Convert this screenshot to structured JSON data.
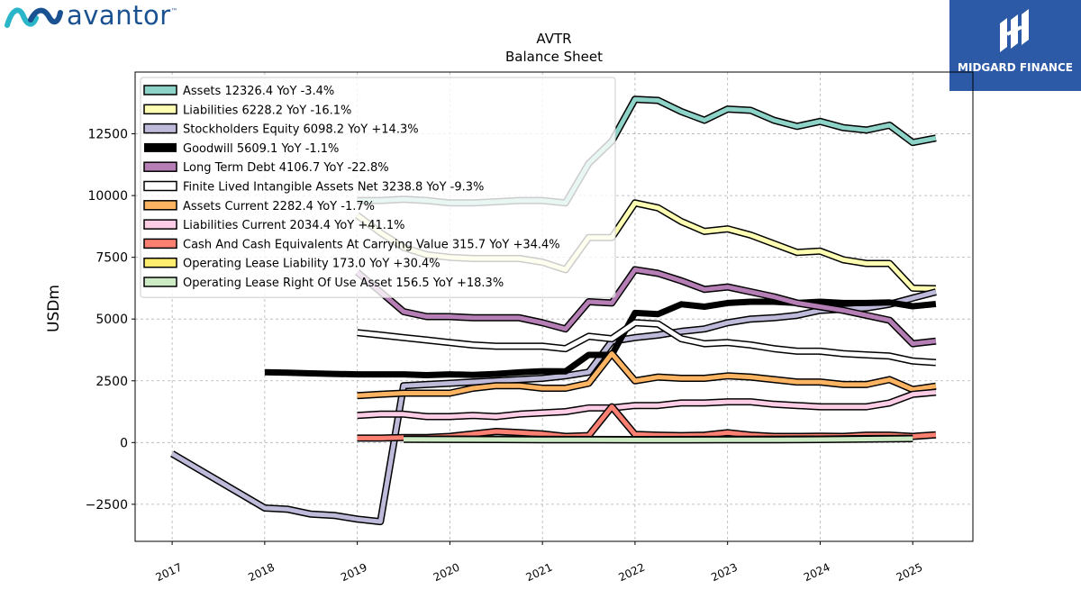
{
  "branding": {
    "left_logo": "avantor",
    "left_logo_tm": "™",
    "right_logo": "MIDGARD FINANCE"
  },
  "chart_data": {
    "type": "line",
    "title": "AVTR",
    "subtitle": "Balance  Sheet",
    "ylabel": "USDm",
    "xlabel": "",
    "ylim": [
      -4000,
      15000
    ],
    "xlim": [
      2016.6,
      2025.65
    ],
    "yticks": [
      -2500,
      0,
      2500,
      5000,
      7500,
      10000,
      12500
    ],
    "ytick_labels": [
      "−2500",
      "0",
      "2500",
      "5000",
      "7500",
      "10000",
      "12500"
    ],
    "xticks": [
      2017,
      2018,
      2019,
      2020,
      2021,
      2022,
      2023,
      2024,
      2025
    ],
    "xtick_labels": [
      "2017",
      "2018",
      "2019",
      "2020",
      "2021",
      "2022",
      "2023",
      "2024",
      "2025"
    ],
    "grid": true,
    "legend_position": "top-left",
    "series": [
      {
        "name": "Assets",
        "legend": "Assets  12326.4 YoY -3.4%",
        "color": "#8dd3c7",
        "width": 5,
        "x": [
          2019.0,
          2019.25,
          2019.5,
          2019.75,
          2020.0,
          2020.25,
          2020.5,
          2020.75,
          2021.0,
          2021.25,
          2021.5,
          2021.75,
          2022.0,
          2022.25,
          2022.5,
          2022.75,
          2023.0,
          2023.25,
          2023.5,
          2023.75,
          2024.0,
          2024.25,
          2024.5,
          2024.75,
          2025.0,
          2025.25
        ],
        "y": [
          9800,
          9800,
          9850,
          9800,
          9700,
          9700,
          9750,
          9800,
          9800,
          9700,
          11300,
          12200,
          13900,
          13850,
          13400,
          13050,
          13500,
          13450,
          13050,
          12800,
          13000,
          12750,
          12650,
          12850,
          12150,
          12326.4
        ]
      },
      {
        "name": "Liabilities",
        "legend": "Liabilities  6228.2 YoY -16.1%",
        "color": "#ffffb3",
        "width": 5,
        "x": [
          2019.0,
          2019.25,
          2019.5,
          2019.75,
          2020.0,
          2020.25,
          2020.5,
          2020.75,
          2021.0,
          2021.25,
          2021.5,
          2021.75,
          2022.0,
          2022.25,
          2022.5,
          2022.75,
          2023.0,
          2023.25,
          2023.5,
          2023.75,
          2024.0,
          2024.25,
          2024.5,
          2024.75,
          2025.0,
          2025.25
        ],
        "y": [
          9200,
          8500,
          7900,
          7600,
          7500,
          7450,
          7450,
          7450,
          7300,
          7000,
          8300,
          8300,
          9700,
          9500,
          8950,
          8550,
          8650,
          8400,
          8050,
          7700,
          7750,
          7400,
          7250,
          7250,
          6250,
          6228.2
        ]
      },
      {
        "name": "Stockholders Equity",
        "legend": "Stockholders Equity  6098.2 YoY +14.3%",
        "color": "#bebada",
        "width": 5,
        "x": [
          2017.0,
          2018.0,
          2018.25,
          2018.5,
          2018.75,
          2019.0,
          2019.25,
          2019.5,
          2019.75,
          2020.0,
          2020.25,
          2020.5,
          2020.75,
          2021.0,
          2021.25,
          2021.5,
          2021.75,
          2022.0,
          2022.25,
          2022.5,
          2022.75,
          2023.0,
          2023.25,
          2023.5,
          2023.75,
          2024.0,
          2024.25,
          2024.5,
          2024.75,
          2025.0,
          2025.25
        ],
        "y": [
          -450,
          -2650,
          -2700,
          -2900,
          -2950,
          -3100,
          -3200,
          2300,
          2350,
          2400,
          2450,
          2500,
          2550,
          2600,
          2700,
          2850,
          4100,
          4250,
          4350,
          4500,
          4600,
          4850,
          5000,
          5050,
          5150,
          5350,
          5400,
          5450,
          5600,
          5850,
          6098.2
        ]
      },
      {
        "name": "Goodwill",
        "legend": "Goodwill  5609.1 YoY -1.1%",
        "color": "#000000",
        "width": 7,
        "x": [
          2018.0,
          2018.25,
          2018.5,
          2018.75,
          2019.0,
          2019.25,
          2019.5,
          2019.75,
          2020.0,
          2020.25,
          2020.5,
          2020.75,
          2021.0,
          2021.25,
          2021.5,
          2021.75,
          2022.0,
          2022.25,
          2022.5,
          2022.75,
          2023.0,
          2023.25,
          2023.5,
          2023.75,
          2024.0,
          2024.25,
          2024.5,
          2024.75,
          2025.0,
          2025.25
        ],
        "y": [
          2850,
          2830,
          2800,
          2780,
          2760,
          2760,
          2760,
          2730,
          2760,
          2740,
          2780,
          2840,
          2890,
          2880,
          3550,
          3550,
          5250,
          5200,
          5600,
          5500,
          5650,
          5700,
          5700,
          5650,
          5700,
          5650,
          5650,
          5670,
          5520,
          5609.1
        ]
      },
      {
        "name": "Long Term Debt",
        "legend": "Long Term Debt  4106.7 YoY -22.8%",
        "color": "#b57eb5",
        "width": 5,
        "x": [
          2019.0,
          2019.25,
          2019.5,
          2019.75,
          2020.0,
          2020.25,
          2020.5,
          2020.75,
          2021.0,
          2021.25,
          2021.5,
          2021.75,
          2022.0,
          2022.25,
          2022.5,
          2022.75,
          2023.0,
          2023.25,
          2023.5,
          2023.75,
          2024.0,
          2024.25,
          2024.5,
          2024.75,
          2025.0,
          2025.25
        ],
        "y": [
          6900,
          6100,
          5300,
          5100,
          5100,
          5050,
          5050,
          5050,
          4850,
          4600,
          5700,
          5650,
          7000,
          6850,
          6550,
          6200,
          6300,
          6100,
          5900,
          5650,
          5500,
          5350,
          5150,
          4950,
          4000,
          4106.7
        ]
      },
      {
        "name": "Finite Lived Intangible Assets Net",
        "legend": "Finite Lived Intangible Assets Net  3238.8 YoY -9.3%",
        "color": "#ffffff",
        "width": 5,
        "x": [
          2019.0,
          2019.25,
          2019.5,
          2019.75,
          2020.0,
          2020.25,
          2020.5,
          2020.75,
          2021.0,
          2021.25,
          2021.5,
          2021.75,
          2022.0,
          2022.25,
          2022.5,
          2022.75,
          2023.0,
          2023.25,
          2023.5,
          2023.75,
          2024.0,
          2024.25,
          2024.5,
          2024.75,
          2025.0,
          2025.25
        ],
        "y": [
          4450,
          4350,
          4250,
          4150,
          4050,
          3950,
          3900,
          3900,
          3900,
          3800,
          4300,
          4200,
          4850,
          4800,
          4200,
          4000,
          4050,
          3950,
          3800,
          3700,
          3700,
          3600,
          3550,
          3500,
          3300,
          3238.8
        ]
      },
      {
        "name": "Assets Current",
        "legend": "Assets Current  2282.4 YoY -1.7%",
        "color": "#fdb462",
        "width": 5,
        "x": [
          2019.0,
          2019.25,
          2019.5,
          2019.75,
          2020.0,
          2020.25,
          2020.5,
          2020.75,
          2021.0,
          2021.25,
          2021.5,
          2021.75,
          2022.0,
          2022.25,
          2022.5,
          2022.75,
          2023.0,
          2023.25,
          2023.5,
          2023.75,
          2024.0,
          2024.25,
          2024.5,
          2024.75,
          2025.0,
          2025.25
        ],
        "y": [
          1900,
          1950,
          2000,
          2000,
          2000,
          2200,
          2300,
          2300,
          2200,
          2200,
          2400,
          3600,
          2500,
          2650,
          2600,
          2600,
          2700,
          2650,
          2550,
          2450,
          2450,
          2350,
          2350,
          2550,
          2150,
          2282.4
        ]
      },
      {
        "name": "Liabilities Current",
        "legend": "Liabilities Current  2034.4 YoY +41.1%",
        "color": "#fccde5",
        "width": 5,
        "x": [
          2019.0,
          2019.25,
          2019.5,
          2019.75,
          2020.0,
          2020.25,
          2020.5,
          2020.75,
          2021.0,
          2021.25,
          2021.5,
          2021.75,
          2022.0,
          2022.25,
          2022.5,
          2022.75,
          2023.0,
          2023.25,
          2023.5,
          2023.75,
          2024.0,
          2024.25,
          2024.5,
          2024.75,
          2025.0,
          2025.25
        ],
        "y": [
          1100,
          1150,
          1150,
          1050,
          1050,
          1100,
          1050,
          1150,
          1200,
          1250,
          1400,
          1400,
          1500,
          1500,
          1600,
          1600,
          1650,
          1650,
          1550,
          1500,
          1450,
          1450,
          1450,
          1600,
          1950,
          2034.4
        ]
      },
      {
        "name": "Cash And Cash Equivalents At Carrying Value",
        "legend": "Cash And Cash Equivalents At Carrying Value  315.7 YoY +34.4%",
        "color": "#fb8072",
        "width": 5,
        "x": [
          2019.0,
          2019.25,
          2019.5,
          2019.75,
          2020.0,
          2020.25,
          2020.5,
          2020.75,
          2021.0,
          2021.25,
          2021.5,
          2021.75,
          2022.0,
          2022.25,
          2022.5,
          2022.75,
          2023.0,
          2023.25,
          2023.5,
          2023.75,
          2024.0,
          2024.25,
          2024.5,
          2024.75,
          2025.0,
          2025.25
        ],
        "y": [
          180,
          180,
          200,
          200,
          250,
          350,
          450,
          400,
          350,
          250,
          280,
          1450,
          330,
          300,
          280,
          300,
          400,
          300,
          250,
          250,
          260,
          250,
          300,
          300,
          250,
          315.7
        ]
      },
      {
        "name": "Operating Lease Liability",
        "legend": "Operating Lease Liability  173.0 YoY +30.4%",
        "color": "#ffed6f",
        "width": 5,
        "x": [
          2019.5,
          2020.0,
          2020.5,
          2021.0,
          2021.5,
          2022.0,
          2022.5,
          2023.0,
          2023.5,
          2024.0,
          2024.5,
          2025.0
        ],
        "y": [
          140,
          140,
          135,
          130,
          125,
          120,
          125,
          130,
          135,
          140,
          160,
          173.0
        ]
      },
      {
        "name": "Operating Lease Right Of Use Asset",
        "legend": "Operating Lease Right Of Use Asset  156.5 YoY +18.3%",
        "color": "#ccebc5",
        "width": 5,
        "x": [
          2019.5,
          2020.0,
          2020.5,
          2021.0,
          2021.5,
          2022.0,
          2022.5,
          2023.0,
          2023.5,
          2024.0,
          2024.5,
          2025.0
        ],
        "y": [
          130,
          125,
          120,
          115,
          110,
          105,
          105,
          110,
          115,
          120,
          140,
          156.5
        ]
      }
    ]
  }
}
